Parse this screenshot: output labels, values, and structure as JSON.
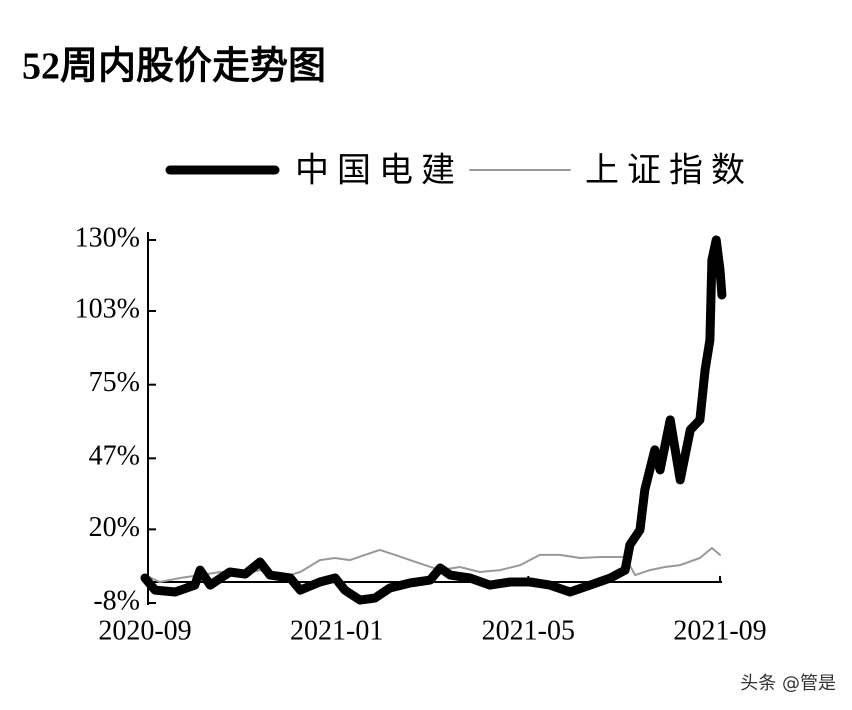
{
  "chart_data": {
    "type": "line",
    "title": "52周内股价走势图",
    "series": [
      {
        "name": "中国电建",
        "color": "#000000",
        "width": 9,
        "x": [
          0,
          0.21,
          0.63,
          1.04,
          1.15,
          1.36,
          1.77,
          2.09,
          2.4,
          2.61,
          3.03,
          3.24,
          3.65,
          3.97,
          4.17,
          4.49,
          4.8,
          5.11,
          5.53,
          5.95,
          6.16,
          6.37,
          6.78,
          7.2,
          7.62,
          8.04,
          8.45,
          8.87,
          9.29,
          9.71,
          10.02,
          10.12,
          10.33,
          10.43,
          10.64,
          10.75,
          10.96,
          11.17,
          11.38,
          11.58,
          11.69,
          11.79,
          11.83,
          11.92,
          12.0,
          12.04
        ],
        "values": [
          1.5,
          -3.1,
          -3.8,
          -1.2,
          4.5,
          -1.2,
          3.8,
          3.0,
          7.6,
          2.6,
          1.5,
          -3.1,
          0,
          1.5,
          -3.1,
          -6.9,
          -6.1,
          -2.3,
          -0.4,
          0.7,
          5.3,
          2.6,
          1.5,
          -1.2,
          0,
          0,
          -1.2,
          -3.8,
          -1.2,
          1.5,
          4.5,
          14.1,
          19.8,
          35,
          50.2,
          42.6,
          61.6,
          38.8,
          57.8,
          61.6,
          80.6,
          92,
          122.4,
          130,
          118.6,
          109.1
        ]
      },
      {
        "name": "上证指数",
        "color": "#999999",
        "width": 2,
        "x": [
          0,
          0.31,
          0.73,
          1.15,
          1.57,
          1.98,
          2.4,
          2.82,
          3.24,
          3.65,
          3.96,
          4.28,
          4.59,
          4.9,
          5.22,
          5.53,
          5.84,
          6.16,
          6.57,
          6.99,
          7.41,
          7.83,
          8.24,
          8.66,
          9.08,
          9.5,
          10.02,
          10.23,
          10.54,
          10.85,
          11.17,
          11.58,
          11.83,
          12.0
        ],
        "values": [
          2.6,
          0,
          1.5,
          2.6,
          3.8,
          2.6,
          4.5,
          1.5,
          3.8,
          8.3,
          9.1,
          8.3,
          10.3,
          12.2,
          10.3,
          8.3,
          6.4,
          4.5,
          5.7,
          3.8,
          4.5,
          6.4,
          10.3,
          10.3,
          9.1,
          9.5,
          9.5,
          2.6,
          4.5,
          5.7,
          6.4,
          9.1,
          12.9,
          10.3
        ]
      }
    ],
    "xlim": [
      0,
      12
    ],
    "xticks": [
      {
        "value": 0,
        "label": "2020-09"
      },
      {
        "value": 4,
        "label": "2021-01"
      },
      {
        "value": 8,
        "label": "2021-05"
      },
      {
        "value": 12,
        "label": "2021-09"
      }
    ],
    "ylim": [
      -8,
      130
    ],
    "yticks": [
      {
        "value": -8,
        "label": "-8%"
      },
      {
        "value": 20,
        "label": "20%"
      },
      {
        "value": 47,
        "label": "47%"
      },
      {
        "value": 75,
        "label": "75%"
      },
      {
        "value": 103,
        "label": "103%"
      },
      {
        "value": 130,
        "label": "130%"
      }
    ],
    "watermark": "头条 @管是"
  }
}
